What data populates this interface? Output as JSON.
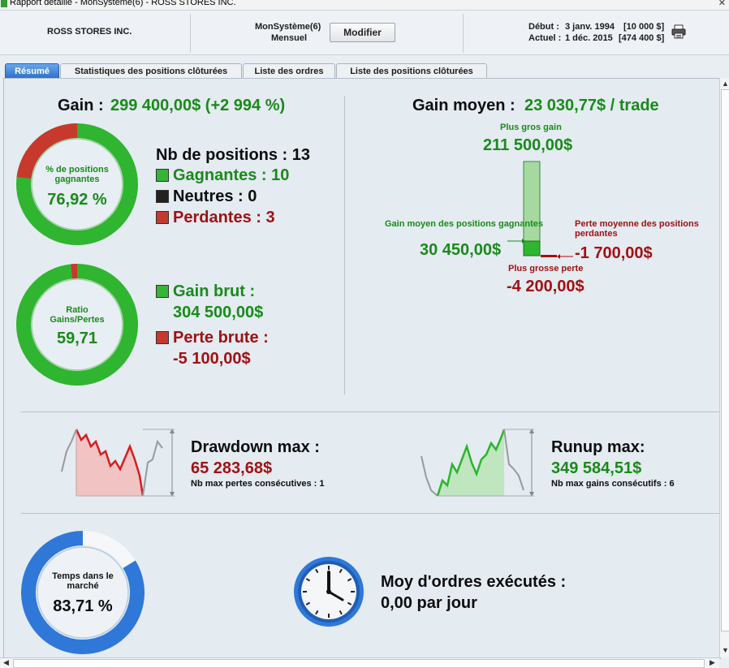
{
  "window": {
    "title": "Rapport détaillé - MonSystème(6) - ROSS STORES INC."
  },
  "header": {
    "symbol": "ROSS STORES INC.",
    "system": "MonSystème(6)",
    "period": "Mensuel",
    "modify_label": "Modifier",
    "start_label": "Début :",
    "start_date": "3 janv. 1994",
    "start_value": "[10 000 $]",
    "end_label": "Actuel :",
    "end_date": "1 déc. 2015",
    "end_value": "[474 400 $]",
    "print_icon": "printer-icon"
  },
  "tabs": [
    {
      "label": "Résumé",
      "active": true
    },
    {
      "label": "Statistiques des positions clôturées",
      "active": false
    },
    {
      "label": "Liste des ordres",
      "active": false
    },
    {
      "label": "Liste des positions clôturées",
      "active": false
    }
  ],
  "summary": {
    "gain_label": "Gain :",
    "gain_value": "299 400,00$ (+2 994 %)",
    "win_donut": {
      "label": "% de positions gagnantes",
      "value": "76,92 %",
      "fraction": 0.7692
    },
    "positions_label": "Nb de positions : 13",
    "winning_label": "Gagnantes : 10",
    "neutral_label": "Neutres : 0",
    "losing_label": "Perdantes : 3",
    "ratio_donut": {
      "label": "Ratio Gains/Pertes",
      "value": "59,71",
      "fraction": 0.9835
    },
    "gross_gain_label": "Gain brut :",
    "gross_gain_value": "304 500,00$",
    "gross_loss_label": "Perte brute :",
    "gross_loss_value": "-5 100,00$",
    "colors": {
      "green": "#1a8a1a",
      "red": "#a01212",
      "blue": "#2f72c9"
    }
  },
  "average": {
    "title_label": "Gain moyen :",
    "title_value": "23 030,77$ / trade",
    "largest_gain_label": "Plus gros gain",
    "largest_gain_value": "211 500,00$",
    "avg_win_label": "Gain moyen des positions gagnantes",
    "avg_win_value": "30 450,00$",
    "avg_loss_label": "Perte moyenne des positions perdantes",
    "avg_loss_value": "-1 700,00$",
    "largest_loss_label": "Plus grosse perte",
    "largest_loss_value": "-4 200,00$"
  },
  "drawdown": {
    "title": "Drawdown max :",
    "value": "65 283,68$",
    "note": "Nb max pertes consécutives : 1"
  },
  "runup": {
    "title": "Runup max:",
    "value": "349 584,51$",
    "note": "Nb max gains consécutifs : 6"
  },
  "market": {
    "label": "Temps dans le marché",
    "value": "83,71 %",
    "fraction": 0.8371
  },
  "orders": {
    "title": "Moy d'ordres exécutés :",
    "value": "0,00 par jour"
  }
}
